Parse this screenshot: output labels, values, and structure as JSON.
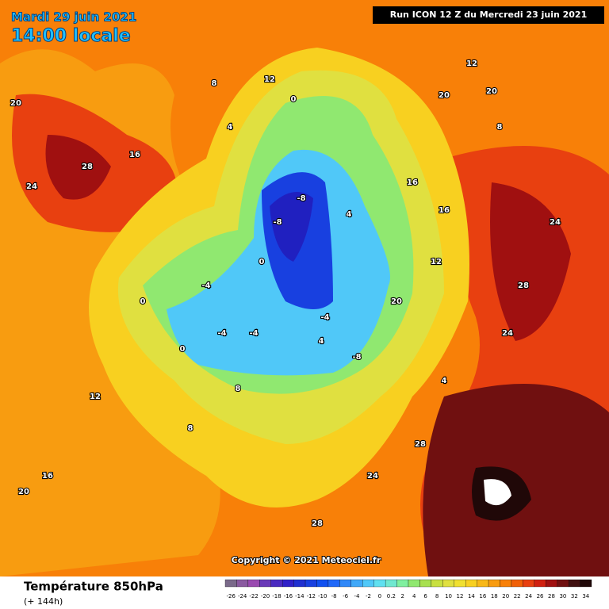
{
  "header": {
    "date": "Mardi 29 juin 2021",
    "time": "14:00 locale",
    "run": "Run ICON 12 Z du Mercredi 23 juin 2021"
  },
  "copyright": "Copyright © 2021 Meteociel.fr",
  "footer": {
    "title": "Température 850hPa",
    "lead": "(+ 144h)"
  },
  "legend": {
    "labels": [
      "-26",
      "-24",
      "-22",
      "-20",
      "-18",
      "-16",
      "-14",
      "-12",
      "-10",
      "-8",
      "-6",
      "-4",
      "-2",
      "0",
      "0.2",
      "2",
      "4",
      "6",
      "8",
      "10",
      "12",
      "14",
      "16",
      "18",
      "20",
      "22",
      "24",
      "26",
      "28",
      "30",
      "32",
      "34"
    ],
    "colors": [
      "#7a6a8a",
      "#8a5aa0",
      "#9a4ab0",
      "#6a3ab8",
      "#4a2ac0",
      "#3020c8",
      "#2030d0",
      "#1840e0",
      "#1050f0",
      "#2068f8",
      "#3088f8",
      "#40a8f8",
      "#50c8f8",
      "#60e0f0",
      "#70e8d0",
      "#80f0a0",
      "#90e870",
      "#a8e050",
      "#c8e040",
      "#e0e040",
      "#f0e030",
      "#f8d020",
      "#f8b818",
      "#f89c10",
      "#f88008",
      "#f06008",
      "#e84010",
      "#d02010",
      "#a01010",
      "#701010",
      "#401010",
      "#200808"
    ]
  },
  "map_labels": [
    "20",
    "16",
    "12",
    "8",
    "4",
    "0",
    "-4",
    "-8",
    "24",
    "28",
    "20",
    "16",
    "12",
    "8",
    "4",
    "0",
    "-4",
    "-8",
    "24",
    "28",
    "20",
    "16",
    "12",
    "8",
    "4",
    "0",
    "-4",
    "-8",
    "24",
    "28",
    "20",
    "16",
    "12",
    "8",
    "4",
    "0",
    "-4",
    "24",
    "28",
    "20"
  ]
}
